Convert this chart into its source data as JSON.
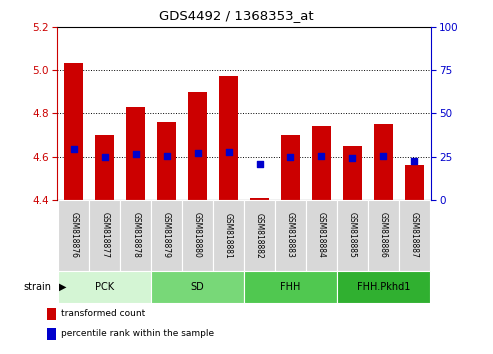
{
  "title": "GDS4492 / 1368353_at",
  "samples": [
    "GSM818876",
    "GSM818877",
    "GSM818878",
    "GSM818879",
    "GSM818880",
    "GSM818881",
    "GSM818882",
    "GSM818883",
    "GSM818884",
    "GSM818885",
    "GSM818886",
    "GSM818887"
  ],
  "red_values": [
    5.03,
    4.7,
    4.83,
    4.76,
    4.9,
    4.97,
    4.41,
    4.7,
    4.74,
    4.65,
    4.75,
    4.56
  ],
  "blue_values": [
    4.635,
    4.6,
    4.61,
    4.605,
    4.615,
    4.62,
    4.565,
    4.6,
    4.605,
    4.595,
    4.605,
    4.58
  ],
  "ylim_left": [
    4.4,
    5.2
  ],
  "ylim_right": [
    0,
    100
  ],
  "yticks_left": [
    4.4,
    4.6,
    4.8,
    5.0,
    5.2
  ],
  "yticks_right": [
    0,
    25,
    50,
    75,
    100
  ],
  "groups_info": [
    {
      "label": "PCK",
      "start": 0,
      "end": 3,
      "color": "#d4f5d4"
    },
    {
      "label": "SD",
      "start": 3,
      "end": 6,
      "color": "#78d878"
    },
    {
      "label": "FHH",
      "start": 6,
      "end": 9,
      "color": "#50c850"
    },
    {
      "label": "FHH.Pkhd1",
      "start": 9,
      "end": 12,
      "color": "#30b030"
    }
  ],
  "bar_bottom": 4.4,
  "bar_color": "#cc0000",
  "dot_color": "#0000cc",
  "left_axis_color": "#cc0000",
  "right_axis_color": "#0000cc",
  "sample_box_color": "#d8d8d8",
  "legend_items": [
    {
      "label": "transformed count",
      "color": "#cc0000"
    },
    {
      "label": "percentile rank within the sample",
      "color": "#0000cc"
    }
  ]
}
